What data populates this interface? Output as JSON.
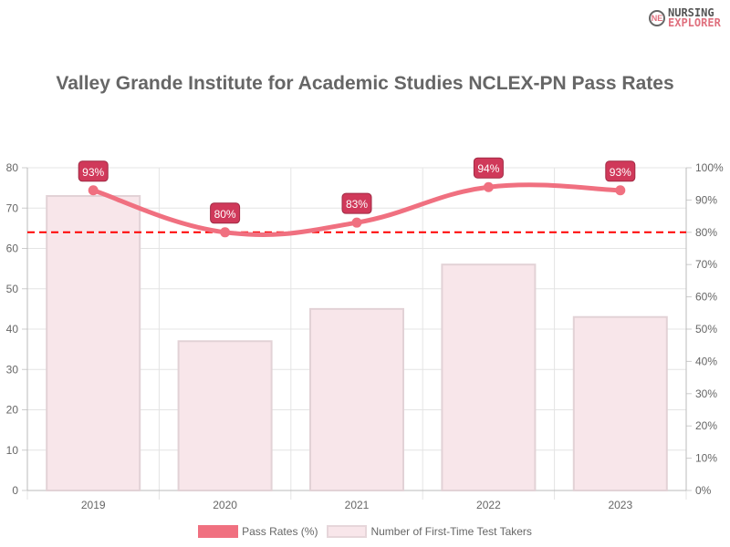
{
  "logo": {
    "line1": "NURSING",
    "line2": "EXPLORER",
    "mark": "NE"
  },
  "chart_data": {
    "type": "bar+line",
    "title": "Valley Grande Institute for Academic Studies NCLEX-PN Pass Rates",
    "categories": [
      "2019",
      "2020",
      "2021",
      "2022",
      "2023"
    ],
    "series": [
      {
        "name": "Pass Rates (%)",
        "type": "line",
        "axis": "right",
        "values": [
          93,
          80,
          83,
          94,
          93
        ],
        "labels": [
          "93%",
          "80%",
          "83%",
          "94%",
          "93%"
        ],
        "color": "#f07080"
      },
      {
        "name": "Number of First-Time Test Takers",
        "type": "bar",
        "axis": "left",
        "values": [
          73,
          37,
          45,
          56,
          43
        ],
        "color": "#f8e6ea"
      }
    ],
    "reference_line": {
      "axis": "right",
      "value": 80,
      "color": "#ff0000",
      "style": "dashed"
    },
    "left_axis": {
      "ylim": [
        0,
        80
      ],
      "ticks": [
        "0",
        "10",
        "20",
        "30",
        "40",
        "50",
        "60",
        "70",
        "80"
      ]
    },
    "right_axis": {
      "ylim": [
        0,
        100
      ],
      "ticks": [
        "0%",
        "10%",
        "20%",
        "30%",
        "40%",
        "50%",
        "60%",
        "70%",
        "80%",
        "90%",
        "100%"
      ]
    },
    "grid": true,
    "legend": "bottom"
  }
}
